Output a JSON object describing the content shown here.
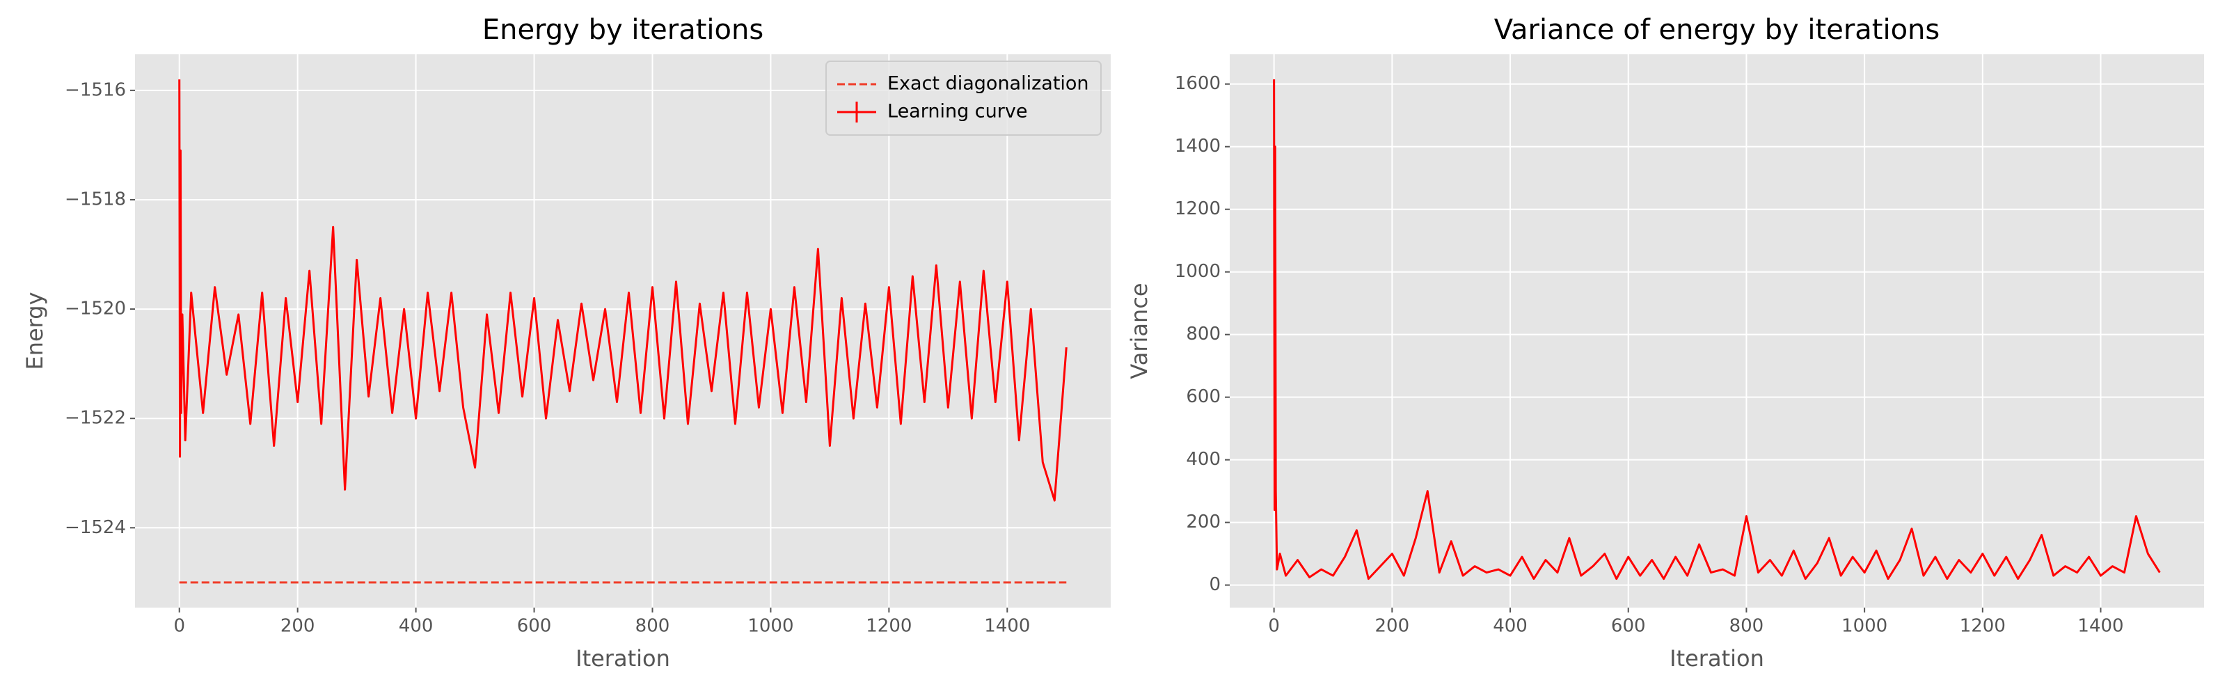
{
  "chart_data": [
    {
      "type": "line",
      "title": "Energy by iterations",
      "x_label": "Iteration",
      "y_label": "Energy",
      "xlim": [
        -75,
        1575
      ],
      "ylim": [
        -1525.46,
        -1515.34
      ],
      "xticks": [
        0,
        200,
        400,
        600,
        800,
        1000,
        1200,
        1400
      ],
      "yticks": [
        {
          "value": -1524,
          "label": "−1524"
        },
        {
          "value": -1522,
          "label": "−1522"
        },
        {
          "value": -1520,
          "label": "−1520"
        },
        {
          "value": -1518,
          "label": "−1518"
        },
        {
          "value": -1516,
          "label": "−1516"
        }
      ],
      "grid": true,
      "legend": "upper right",
      "series": [
        {
          "name": "Exact diagonalization",
          "color": "#f03c28",
          "style": "dashed",
          "x": [
            0,
            1500
          ],
          "values": [
            -1525,
            -1525
          ]
        },
        {
          "name": "Learning curve",
          "color": "#ff0000",
          "style": "errorbar",
          "x": [
            0,
            1,
            2,
            3,
            5,
            10,
            20,
            40,
            60,
            80,
            100,
            120,
            140,
            160,
            180,
            200,
            220,
            240,
            260,
            280,
            300,
            320,
            340,
            360,
            380,
            400,
            420,
            440,
            460,
            480,
            500,
            520,
            540,
            560,
            580,
            600,
            620,
            640,
            660,
            680,
            700,
            720,
            740,
            760,
            780,
            800,
            820,
            840,
            860,
            880,
            900,
            920,
            940,
            960,
            980,
            1000,
            1020,
            1040,
            1060,
            1080,
            1100,
            1120,
            1140,
            1160,
            1180,
            1200,
            1220,
            1240,
            1260,
            1280,
            1300,
            1320,
            1340,
            1360,
            1380,
            1400,
            1420,
            1440,
            1460,
            1480,
            1500
          ],
          "values": [
            -1515.8,
            -1522.7,
            -1517.1,
            -1521.9,
            -1520.1,
            -1522.4,
            -1519.7,
            -1521.9,
            -1519.6,
            -1521.2,
            -1520.1,
            -1522.1,
            -1519.7,
            -1522.5,
            -1519.8,
            -1521.7,
            -1519.3,
            -1522.1,
            -1518.5,
            -1523.3,
            -1519.1,
            -1521.6,
            -1519.8,
            -1521.9,
            -1520.0,
            -1522.0,
            -1519.7,
            -1521.5,
            -1519.7,
            -1521.8,
            -1522.9,
            -1520.1,
            -1521.9,
            -1519.7,
            -1521.6,
            -1519.8,
            -1522.0,
            -1520.2,
            -1521.5,
            -1519.9,
            -1521.3,
            -1520.0,
            -1521.7,
            -1519.7,
            -1521.9,
            -1519.6,
            -1522.0,
            -1519.5,
            -1522.1,
            -1519.9,
            -1521.5,
            -1519.7,
            -1522.1,
            -1519.7,
            -1521.8,
            -1520.0,
            -1521.9,
            -1519.6,
            -1521.7,
            -1518.9,
            -1522.5,
            -1519.8,
            -1522.0,
            -1519.9,
            -1521.8,
            -1519.6,
            -1522.1,
            -1519.4,
            -1521.7,
            -1519.2,
            -1521.8,
            -1519.5,
            -1522.0,
            -1519.3,
            -1521.7,
            -1519.5,
            -1522.4,
            -1520.0,
            -1522.8,
            -1523.5,
            -1520.7
          ]
        }
      ]
    },
    {
      "type": "line",
      "title": "Variance of energy by iterations",
      "x_label": "Iteration",
      "y_label": "Variance",
      "xlim": [
        -75,
        1575
      ],
      "ylim": [
        -72,
        1695
      ],
      "xticks": [
        0,
        200,
        400,
        600,
        800,
        1000,
        1200,
        1400
      ],
      "yticks": [
        0,
        200,
        400,
        600,
        800,
        1000,
        1200,
        1400,
        1600
      ],
      "grid": true,
      "series": [
        {
          "color": "#ff0000",
          "style": "solid",
          "x": [
            0,
            1,
            2,
            3,
            5,
            10,
            20,
            40,
            60,
            80,
            100,
            120,
            140,
            160,
            180,
            200,
            220,
            240,
            260,
            280,
            300,
            320,
            340,
            360,
            380,
            400,
            420,
            440,
            460,
            480,
            500,
            520,
            540,
            560,
            580,
            600,
            620,
            640,
            660,
            680,
            700,
            720,
            740,
            760,
            780,
            800,
            820,
            840,
            860,
            880,
            900,
            920,
            940,
            960,
            980,
            1000,
            1020,
            1040,
            1060,
            1080,
            1100,
            1120,
            1140,
            1160,
            1180,
            1200,
            1220,
            1240,
            1260,
            1280,
            1300,
            1320,
            1340,
            1360,
            1380,
            1400,
            1420,
            1440,
            1460,
            1480,
            1500
          ],
          "values": [
            1615,
            240,
            1400,
            300,
            50,
            100,
            30,
            80,
            25,
            50,
            30,
            90,
            175,
            20,
            60,
            100,
            30,
            150,
            300,
            40,
            140,
            30,
            60,
            40,
            50,
            30,
            90,
            20,
            80,
            40,
            150,
            30,
            60,
            100,
            20,
            90,
            30,
            80,
            20,
            90,
            30,
            130,
            40,
            50,
            30,
            220,
            40,
            80,
            30,
            110,
            20,
            70,
            150,
            30,
            90,
            40,
            110,
            20,
            80,
            180,
            30,
            90,
            20,
            80,
            40,
            100,
            30,
            90,
            20,
            80,
            160,
            30,
            60,
            40,
            90,
            30,
            60,
            40,
            220,
            100,
            40
          ]
        }
      ]
    }
  ]
}
